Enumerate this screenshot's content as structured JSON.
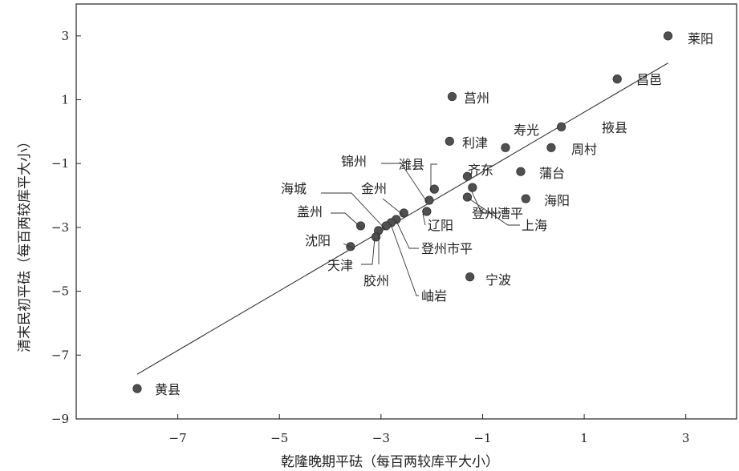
{
  "chart_data": {
    "type": "scatter",
    "title": "",
    "xlabel": "乾隆晚期平砝（每百两较库平大小）",
    "ylabel": "清末民初平砝（每百两较库平大小）",
    "xlim": [
      -9,
      4
    ],
    "ylim": [
      -9,
      4
    ],
    "x_ticks": [
      "−7",
      "−5",
      "−3",
      "−1",
      "1",
      "3"
    ],
    "y_ticks": [
      "3",
      "1",
      "−1",
      "−3",
      "−5",
      "−7",
      "−9"
    ],
    "x_tick_values": [
      -7,
      -5,
      -3,
      -1,
      1,
      3
    ],
    "y_tick_values": [
      3,
      1,
      -1,
      -3,
      -5,
      -7,
      -9
    ],
    "grid": false,
    "fit_line": {
      "x": [
        -7.8,
        2.65
      ],
      "y": [
        -7.6,
        2.15
      ]
    },
    "points": [
      {
        "name": "莱阳",
        "x": 2.65,
        "y": 3.0
      },
      {
        "name": "昌邑",
        "x": 1.65,
        "y": 1.65
      },
      {
        "name": "莒州",
        "x": -1.6,
        "y": 1.1
      },
      {
        "name": "掖县",
        "x": 0.55,
        "y": 0.15
      },
      {
        "name": "寿光",
        "x": -0.55,
        "y": -0.5
      },
      {
        "name": "周村",
        "x": 0.35,
        "y": -0.5
      },
      {
        "name": "利津",
        "x": -1.65,
        "y": -0.3
      },
      {
        "name": "蒲台",
        "x": -0.25,
        "y": -1.25
      },
      {
        "name": "齐东",
        "x": -1.3,
        "y": -1.4
      },
      {
        "name": "登州漕平",
        "x": -1.2,
        "y": -1.75
      },
      {
        "name": "潍县",
        "x": -1.95,
        "y": -1.8
      },
      {
        "name": "海阳",
        "x": -0.15,
        "y": -2.1
      },
      {
        "name": "上海",
        "x": -1.3,
        "y": -2.05
      },
      {
        "name": "锦州",
        "x": -2.05,
        "y": -2.15
      },
      {
        "name": "辽阳",
        "x": -2.1,
        "y": -2.5
      },
      {
        "name": "金州",
        "x": -2.55,
        "y": -2.55
      },
      {
        "name": "登州市平",
        "x": -2.7,
        "y": -2.75
      },
      {
        "name": "岫岩",
        "x": -2.8,
        "y": -2.85
      },
      {
        "name": "海城",
        "x": -2.9,
        "y": -2.95
      },
      {
        "name": "盖州",
        "x": -3.4,
        "y": -2.95
      },
      {
        "name": "胶州",
        "x": -3.05,
        "y": -3.1
      },
      {
        "name": "天津",
        "x": -3.1,
        "y": -3.3
      },
      {
        "name": "沈阳",
        "x": -3.6,
        "y": -3.6
      },
      {
        "name": "宁波",
        "x": -1.25,
        "y": -4.55
      },
      {
        "name": "黄县",
        "x": -7.8,
        "y": -8.05
      }
    ]
  }
}
